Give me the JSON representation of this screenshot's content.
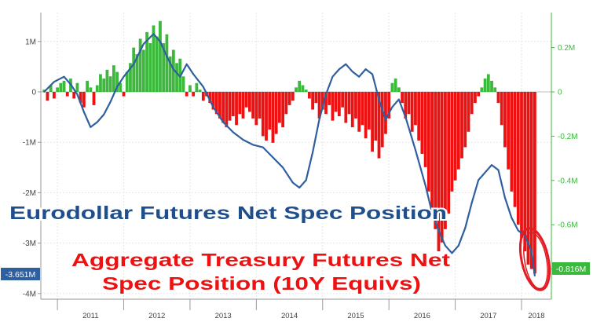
{
  "chart_data": {
    "type": "bar+line",
    "x_years": [
      "2011",
      "2012",
      "2013",
      "2014",
      "2015",
      "2016",
      "2017",
      "2018"
    ],
    "left_axis": {
      "ticks": [
        "1M",
        "0",
        "-1M",
        "-2M",
        "-3M",
        "-4M"
      ],
      "tick_values": [
        1,
        0,
        -1,
        -2,
        -3,
        -4
      ],
      "unit": "M",
      "ylim": [
        -4.1,
        1.65
      ]
    },
    "right_axis": {
      "ticks": [
        "0.2M",
        "0",
        "-0.2M",
        "-0.4M",
        "-0.6M",
        "-0.8M"
      ],
      "tick_values": [
        0.2,
        0,
        -0.2,
        -0.4,
        -0.6,
        -0.8
      ],
      "unit": "M",
      "ylim": [
        -0.82,
        0.33
      ]
    },
    "left_last_value_label": "-3.651M",
    "right_last_value_label": "-0.816M",
    "series": [
      {
        "name": "Eurodollar Futures Net Spec Position",
        "kind": "line",
        "axis": "left",
        "color": "#2e5f9e",
        "points": [
          [
            2010.8,
            0.0
          ],
          [
            2010.95,
            0.2
          ],
          [
            2011.1,
            0.3
          ],
          [
            2011.2,
            0.15
          ],
          [
            2011.3,
            -0.05
          ],
          [
            2011.4,
            -0.4
          ],
          [
            2011.5,
            -0.7
          ],
          [
            2011.6,
            -0.6
          ],
          [
            2011.7,
            -0.45
          ],
          [
            2011.8,
            -0.2
          ],
          [
            2011.9,
            0.1
          ],
          [
            2012.0,
            0.3
          ],
          [
            2012.15,
            0.55
          ],
          [
            2012.3,
            0.95
          ],
          [
            2012.45,
            1.15
          ],
          [
            2012.55,
            1.0
          ],
          [
            2012.65,
            0.7
          ],
          [
            2012.75,
            0.45
          ],
          [
            2012.85,
            0.3
          ],
          [
            2012.95,
            0.55
          ],
          [
            2013.05,
            0.35
          ],
          [
            2013.2,
            0.1
          ],
          [
            2013.35,
            -0.3
          ],
          [
            2013.5,
            -0.6
          ],
          [
            2013.65,
            -0.8
          ],
          [
            2013.8,
            -0.95
          ],
          [
            2013.95,
            -1.05
          ],
          [
            2014.1,
            -1.1
          ],
          [
            2014.25,
            -1.3
          ],
          [
            2014.4,
            -1.5
          ],
          [
            2014.55,
            -1.8
          ],
          [
            2014.65,
            -1.9
          ],
          [
            2014.75,
            -1.75
          ],
          [
            2014.85,
            -1.2
          ],
          [
            2014.95,
            -0.55
          ],
          [
            2015.05,
            -0.05
          ],
          [
            2015.15,
            0.3
          ],
          [
            2015.25,
            0.45
          ],
          [
            2015.35,
            0.55
          ],
          [
            2015.45,
            0.4
          ],
          [
            2015.55,
            0.3
          ],
          [
            2015.65,
            0.45
          ],
          [
            2015.75,
            0.35
          ],
          [
            2015.85,
            -0.15
          ],
          [
            2015.95,
            -0.55
          ],
          [
            2016.05,
            -0.3
          ],
          [
            2016.15,
            -0.15
          ],
          [
            2016.25,
            -0.5
          ],
          [
            2016.4,
            -1.15
          ],
          [
            2016.55,
            -1.85
          ],
          [
            2016.65,
            -2.4
          ],
          [
            2016.75,
            -2.75
          ],
          [
            2016.85,
            -3.05
          ],
          [
            2016.95,
            -3.2
          ],
          [
            2017.05,
            -3.05
          ],
          [
            2017.15,
            -2.7
          ],
          [
            2017.25,
            -2.2
          ],
          [
            2017.35,
            -1.75
          ],
          [
            2017.45,
            -1.6
          ],
          [
            2017.55,
            -1.45
          ],
          [
            2017.65,
            -1.55
          ],
          [
            2017.75,
            -2.1
          ],
          [
            2017.85,
            -2.5
          ],
          [
            2017.95,
            -2.75
          ],
          [
            2018.05,
            -2.85
          ],
          [
            2018.15,
            -3.15
          ],
          [
            2018.2,
            -3.65
          ]
        ]
      },
      {
        "name": "Aggregate Treasury Futures Net Spec Position (10Y Equivs)",
        "kind": "bar",
        "axis": "right",
        "positive_color": "#3cb83c",
        "negative_color": "#ee1111",
        "points": [
          [
            2010.8,
            0.01
          ],
          [
            2010.85,
            -0.04
          ],
          [
            2010.9,
            0.03
          ],
          [
            2010.95,
            -0.03
          ],
          [
            2011.0,
            0.02
          ],
          [
            2011.05,
            0.04
          ],
          [
            2011.1,
            0.05
          ],
          [
            2011.15,
            -0.02
          ],
          [
            2011.2,
            0.06
          ],
          [
            2011.25,
            -0.03
          ],
          [
            2011.3,
            0.04
          ],
          [
            2011.35,
            -0.05
          ],
          [
            2011.4,
            -0.07
          ],
          [
            2011.45,
            0.05
          ],
          [
            2011.5,
            0.02
          ],
          [
            2011.55,
            -0.06
          ],
          [
            2011.6,
            0.03
          ],
          [
            2011.65,
            0.08
          ],
          [
            2011.7,
            0.06
          ],
          [
            2011.75,
            0.1
          ],
          [
            2011.8,
            0.07
          ],
          [
            2011.85,
            0.12
          ],
          [
            2011.9,
            0.09
          ],
          [
            2011.95,
            0.04
          ],
          [
            2012.0,
            -0.02
          ],
          [
            2012.05,
            0.09
          ],
          [
            2012.1,
            0.13
          ],
          [
            2012.15,
            0.2
          ],
          [
            2012.2,
            0.17
          ],
          [
            2012.25,
            0.24
          ],
          [
            2012.3,
            0.19
          ],
          [
            2012.35,
            0.27
          ],
          [
            2012.4,
            0.22
          ],
          [
            2012.45,
            0.3
          ],
          [
            2012.5,
            0.25
          ],
          [
            2012.55,
            0.32
          ],
          [
            2012.6,
            0.22
          ],
          [
            2012.65,
            0.26
          ],
          [
            2012.7,
            0.16
          ],
          [
            2012.75,
            0.19
          ],
          [
            2012.8,
            0.13
          ],
          [
            2012.85,
            0.15
          ],
          [
            2012.9,
            0.07
          ],
          [
            2012.95,
            -0.02
          ],
          [
            2013.0,
            0.03
          ],
          [
            2013.05,
            -0.02
          ],
          [
            2013.1,
            0.04
          ],
          [
            2013.15,
            0.01
          ],
          [
            2013.2,
            -0.04
          ],
          [
            2013.25,
            -0.02
          ],
          [
            2013.3,
            -0.05
          ],
          [
            2013.35,
            -0.08
          ],
          [
            2013.4,
            -0.1
          ],
          [
            2013.45,
            -0.12
          ],
          [
            2013.5,
            -0.14
          ],
          [
            2013.55,
            -0.16
          ],
          [
            2013.6,
            -0.13
          ],
          [
            2013.65,
            -0.11
          ],
          [
            2013.7,
            -0.15
          ],
          [
            2013.75,
            -0.1
          ],
          [
            2013.8,
            -0.12
          ],
          [
            2013.85,
            -0.07
          ],
          [
            2013.9,
            -0.09
          ],
          [
            2013.95,
            -0.12
          ],
          [
            2014.0,
            -0.15
          ],
          [
            2014.05,
            -0.12
          ],
          [
            2014.1,
            -0.2
          ],
          [
            2014.15,
            -0.22
          ],
          [
            2014.2,
            -0.17
          ],
          [
            2014.25,
            -0.23
          ],
          [
            2014.3,
            -0.19
          ],
          [
            2014.35,
            -0.14
          ],
          [
            2014.4,
            -0.16
          ],
          [
            2014.45,
            -0.1
          ],
          [
            2014.5,
            -0.06
          ],
          [
            2014.55,
            -0.04
          ],
          [
            2014.6,
            0.02
          ],
          [
            2014.65,
            0.05
          ],
          [
            2014.7,
            0.03
          ],
          [
            2014.75,
            0.01
          ],
          [
            2014.8,
            -0.03
          ],
          [
            2014.85,
            -0.08
          ],
          [
            2014.9,
            -0.05
          ],
          [
            2014.95,
            -0.12
          ],
          [
            2015.0,
            -0.08
          ],
          [
            2015.05,
            -0.1
          ],
          [
            2015.1,
            -0.06
          ],
          [
            2015.15,
            -0.13
          ],
          [
            2015.2,
            -0.09
          ],
          [
            2015.25,
            -0.11
          ],
          [
            2015.3,
            -0.07
          ],
          [
            2015.35,
            -0.14
          ],
          [
            2015.4,
            -0.1
          ],
          [
            2015.45,
            -0.16
          ],
          [
            2015.5,
            -0.12
          ],
          [
            2015.55,
            -0.18
          ],
          [
            2015.6,
            -0.15
          ],
          [
            2015.65,
            -0.21
          ],
          [
            2015.7,
            -0.17
          ],
          [
            2015.75,
            -0.27
          ],
          [
            2015.8,
            -0.22
          ],
          [
            2015.85,
            -0.3
          ],
          [
            2015.9,
            -0.25
          ],
          [
            2015.95,
            -0.19
          ],
          [
            2016.0,
            -0.12
          ],
          [
            2016.05,
            0.04
          ],
          [
            2016.1,
            0.06
          ],
          [
            2016.15,
            0.02
          ],
          [
            2016.2,
            -0.05
          ],
          [
            2016.25,
            -0.12
          ],
          [
            2016.3,
            -0.1
          ],
          [
            2016.35,
            -0.18
          ],
          [
            2016.4,
            -0.15
          ],
          [
            2016.45,
            -0.22
          ],
          [
            2016.5,
            -0.28
          ],
          [
            2016.55,
            -0.34
          ],
          [
            2016.6,
            -0.45
          ],
          [
            2016.65,
            -0.55
          ],
          [
            2016.7,
            -0.62
          ],
          [
            2016.75,
            -0.72
          ],
          [
            2016.8,
            -0.68
          ],
          [
            2016.85,
            -0.62
          ],
          [
            2016.9,
            -0.55
          ],
          [
            2016.95,
            -0.45
          ],
          [
            2017.0,
            -0.4
          ],
          [
            2017.05,
            -0.35
          ],
          [
            2017.1,
            -0.3
          ],
          [
            2017.15,
            -0.25
          ],
          [
            2017.2,
            -0.18
          ],
          [
            2017.25,
            -0.1
          ],
          [
            2017.3,
            -0.05
          ],
          [
            2017.35,
            -0.02
          ],
          [
            2017.4,
            0.02
          ],
          [
            2017.45,
            0.06
          ],
          [
            2017.5,
            0.08
          ],
          [
            2017.55,
            0.05
          ],
          [
            2017.6,
            0.02
          ],
          [
            2017.65,
            -0.05
          ],
          [
            2017.7,
            -0.15
          ],
          [
            2017.75,
            -0.25
          ],
          [
            2017.8,
            -0.35
          ],
          [
            2017.85,
            -0.45
          ],
          [
            2017.9,
            -0.52
          ],
          [
            2017.95,
            -0.6
          ],
          [
            2018.0,
            -0.66
          ],
          [
            2018.05,
            -0.72
          ],
          [
            2018.1,
            -0.78
          ],
          [
            2018.15,
            -0.8
          ],
          [
            2018.2,
            -0.82
          ]
        ]
      }
    ],
    "annotations": [
      {
        "text": "Eurodollar Futures Net Spec Position",
        "color": "#1f4e8c"
      },
      {
        "text": "Aggregate Treasury Futures Net",
        "color": "#ee1111"
      },
      {
        "text": "Spec Position (10Y Equivs)",
        "color": "#ee1111"
      }
    ],
    "highlight": {
      "shape": "ellipse",
      "color": "#e31b23",
      "around": "2018 latest values"
    },
    "grid": true
  }
}
